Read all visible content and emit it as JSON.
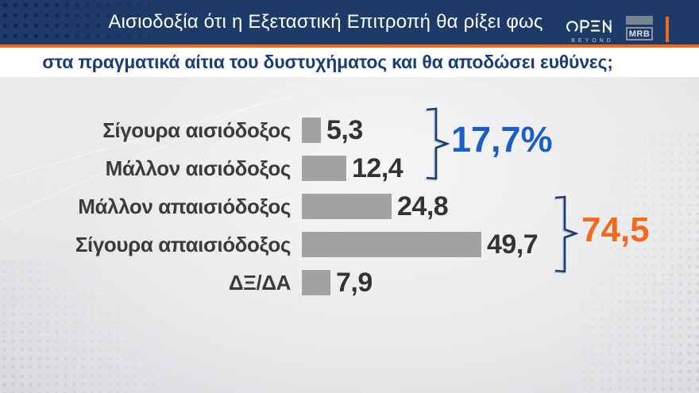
{
  "header": {
    "title": "Αισιοδοξία ότι η Εξεταστική Επιτροπή θα ρίξει φως",
    "open_logo": "OPEN",
    "open_logo_sub": "BEYOND",
    "mrb_logo": "MRB"
  },
  "subtitle": "στα πραγματικά αίτια του δυστυχήματος και θα αποδώσει ευθύνες;",
  "colors": {
    "header_bg": "#1e3a69",
    "accent_orange": "#f2691d",
    "subtitle_blue": "#1a3c7c",
    "bar_gray": "#a2a2a2",
    "text_dark": "#333333",
    "group1_blue": "#1b5ec8",
    "group2_orange": "#f4691c",
    "bracket_navy": "#1d3a68"
  },
  "chart_data": {
    "type": "bar",
    "orientation": "horizontal",
    "title": "Αισιοδοξία ότι η Εξεταστική Επιτροπή θα ρίξει φως στα πραγματικά αίτια του δυστυχήματος και θα αποδώσει ευθύνες;",
    "categories": [
      "Σίγουρα αισιόδοξος",
      "Μάλλον αισιόδοξος",
      "Μάλλον απαισιόδοξος",
      "Σίγουρα απαισιόδοξος",
      "ΔΞ/ΔΑ"
    ],
    "values": [
      5.3,
      12.4,
      24.8,
      49.7,
      7.9
    ],
    "value_labels": [
      "5,3",
      "12,4",
      "24,8",
      "49,7",
      "7,9"
    ],
    "xlim": [
      0,
      55
    ],
    "grid": false,
    "legend": false,
    "groups": [
      {
        "label": "17,7%",
        "value": 17.7,
        "rows": [
          0,
          1
        ],
        "color": "#1b5ec8"
      },
      {
        "label": "74,5",
        "value": 74.5,
        "rows": [
          2,
          3
        ],
        "color": "#f4691c"
      }
    ]
  }
}
